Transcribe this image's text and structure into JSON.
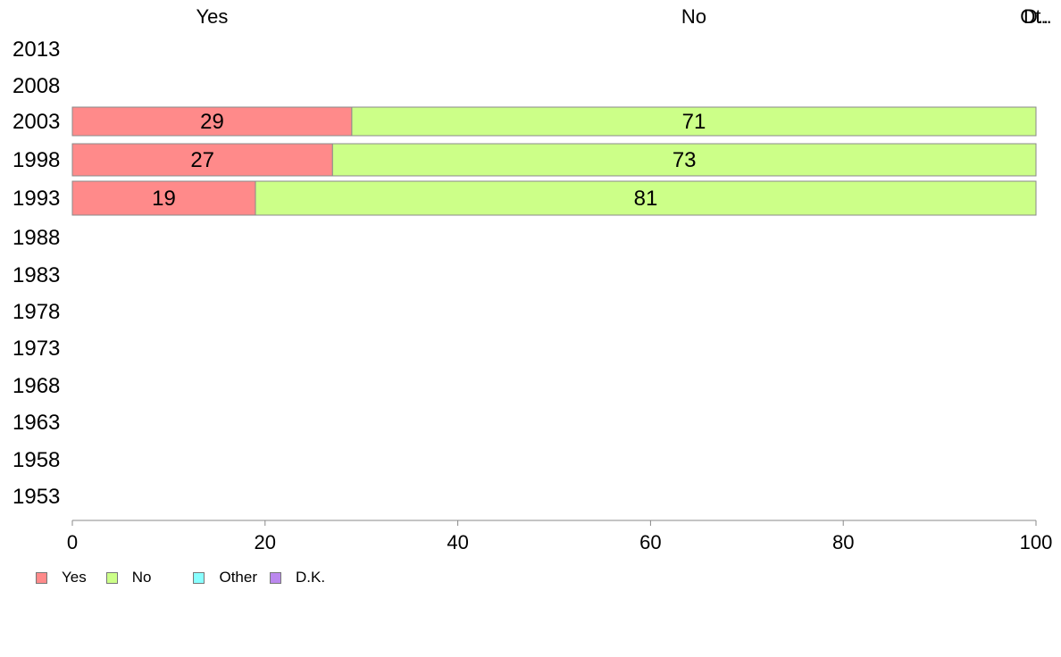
{
  "chart_data": {
    "type": "bar",
    "orientation": "horizontal",
    "stacked": true,
    "categories": [
      "2013",
      "2008",
      "2003",
      "1998",
      "1993",
      "1988",
      "1983",
      "1978",
      "1973",
      "1968",
      "1963",
      "1958",
      "1953"
    ],
    "series": [
      {
        "name": "Yes",
        "color": "#ff8a8a",
        "values": [
          null,
          null,
          29,
          27,
          19,
          null,
          null,
          null,
          null,
          null,
          null,
          null,
          null
        ]
      },
      {
        "name": "No",
        "color": "#ccff88",
        "values": [
          null,
          null,
          71,
          73,
          81,
          null,
          null,
          null,
          null,
          null,
          null,
          null,
          null
        ]
      },
      {
        "name": "Other",
        "color": "#88ffff",
        "values": [
          null,
          null,
          0,
          0,
          0,
          null,
          null,
          null,
          null,
          null,
          null,
          null,
          null
        ]
      },
      {
        "name": "D.K.",
        "color": "#bb88ee",
        "values": [
          null,
          null,
          0,
          0,
          0,
          null,
          null,
          null,
          null,
          null,
          null,
          null,
          null
        ]
      }
    ],
    "xlim": [
      0,
      100
    ],
    "xticks": [
      0,
      20,
      40,
      60,
      80,
      100
    ],
    "top_labels": [
      "Yes",
      "No",
      "Ot..",
      "D.."
    ],
    "legend_position": "bottom-left",
    "grid": false
  },
  "legend": {
    "items": [
      {
        "label": "Yes",
        "color": "#ff8a8a"
      },
      {
        "label": "No",
        "color": "#ccff88"
      },
      {
        "label": "Other",
        "color": "#88ffff"
      },
      {
        "label": "D.K.",
        "color": "#bb88ee"
      }
    ]
  }
}
